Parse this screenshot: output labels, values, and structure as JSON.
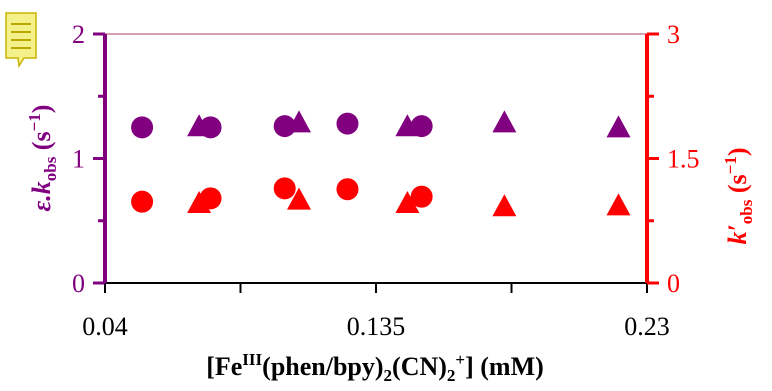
{
  "chart_data": {
    "type": "scatter",
    "x_axis": {
      "range": [
        0.04,
        0.23
      ],
      "tick_values": [
        0.04,
        0.135,
        0.23
      ],
      "tick_labels": [
        "0.04",
        "0.135",
        "0.23"
      ],
      "label": {
        "pre": "[Fe",
        "sup1": "III",
        "mid1": "(phen/bpy)",
        "sub1": "2",
        "mid2": "(CN)",
        "sub2": "2",
        "sup2": "+",
        "post": "] (mM)"
      }
    },
    "y_left": {
      "range": [
        0,
        2
      ],
      "tick_values": [
        0,
        1,
        2
      ],
      "tick_labels": [
        "0",
        "1",
        "2"
      ],
      "color": "#800080",
      "label": {
        "pre": "ε.k",
        "sub": "obs",
        "post": " (s",
        "sup": "−1",
        "end": ")"
      }
    },
    "y_right": {
      "range": [
        0,
        3
      ],
      "tick_values": [
        0,
        1.5,
        3
      ],
      "tick_labels": [
        "0",
        "1.5",
        "3"
      ],
      "color": "#ff0000",
      "label": {
        "pre": "k′",
        "sub": "obs",
        "post": " (s",
        "sup": "−1",
        "end": ")"
      }
    },
    "series": [
      {
        "axis": "left",
        "marker": "circle",
        "color": "#800080",
        "points": [
          [
            0.053,
            1.25
          ],
          [
            0.077,
            1.25
          ],
          [
            0.103,
            1.26
          ],
          [
            0.125,
            1.28
          ],
          [
            0.151,
            1.26
          ]
        ]
      },
      {
        "axis": "left",
        "marker": "triangle",
        "color": "#800080",
        "points": [
          [
            0.073,
            1.25
          ],
          [
            0.108,
            1.28
          ],
          [
            0.146,
            1.25
          ],
          [
            0.18,
            1.28
          ],
          [
            0.22,
            1.24
          ]
        ]
      },
      {
        "axis": "right",
        "marker": "circle",
        "color": "#ff0000",
        "points": [
          [
            0.053,
            0.98
          ],
          [
            0.077,
            1.02
          ],
          [
            0.103,
            1.14
          ],
          [
            0.125,
            1.13
          ],
          [
            0.151,
            1.04
          ]
        ]
      },
      {
        "axis": "right",
        "marker": "triangle",
        "color": "#ff0000",
        "points": [
          [
            0.073,
            0.95
          ],
          [
            0.108,
            0.99
          ],
          [
            0.146,
            0.95
          ],
          [
            0.18,
            0.91
          ],
          [
            0.22,
            0.92
          ]
        ]
      }
    ],
    "grid": false,
    "legend": "none"
  },
  "comment_icon": {
    "color": "#f4f08a"
  }
}
